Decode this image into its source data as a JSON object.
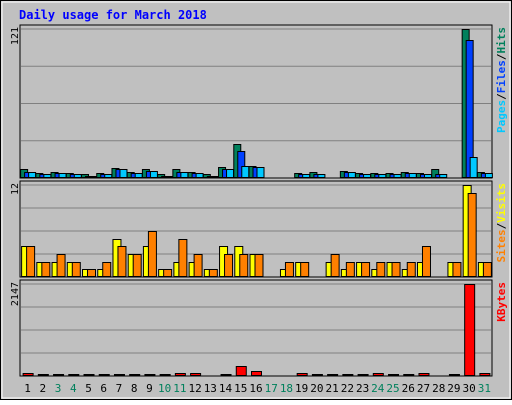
{
  "chart_data": {
    "type": "bar",
    "title": "Daily usage for March 2018",
    "colors": {
      "background": "#c0c0c0",
      "title": "#0000ff",
      "hits": "#00805c",
      "files": "#0040ff",
      "pages": "#00c8ff",
      "visits": "#ffff00",
      "sites": "#ff8000",
      "kbytes": "#ff0000",
      "weekday_label": "#000000",
      "weekend_label": "#00805c"
    },
    "x": {
      "labels": [
        "1",
        "2",
        "3",
        "4",
        "5",
        "6",
        "7",
        "8",
        "9",
        "10",
        "11",
        "12",
        "13",
        "14",
        "15",
        "16",
        "17",
        "18",
        "19",
        "20",
        "21",
        "22",
        "23",
        "24",
        "25",
        "26",
        "27",
        "28",
        "29",
        "30",
        "31"
      ],
      "weekend_days": [
        3,
        4,
        10,
        11,
        17,
        18,
        24,
        25,
        31
      ]
    },
    "panels": [
      {
        "id": "hits-files-pages",
        "ymax": 121,
        "ymax_label": "121",
        "legend": [
          {
            "text": "Hits",
            "color": "#00805c"
          },
          {
            "text": "Files",
            "color": "#0040ff"
          },
          {
            "text": "Pages",
            "color": "#00c8ff"
          }
        ],
        "series": [
          {
            "name": "Hits",
            "color": "#00805c",
            "values": [
              7,
              4,
              5,
              4,
              3,
              4,
              8,
              5,
              7,
              3,
              7,
              5,
              3,
              9,
              28,
              10,
              0,
              0,
              4,
              5,
              0,
              6,
              4,
              4,
              4,
              5,
              4,
              7,
              0,
              121,
              5
            ]
          },
          {
            "name": "Files",
            "color": "#0040ff",
            "values": [
              5,
              3,
              4,
              3,
              2,
              3,
              7,
              4,
              6,
              2,
              5,
              4,
              2,
              7,
              22,
              9,
              0,
              0,
              3,
              3,
              0,
              5,
              3,
              3,
              3,
              4,
              3,
              3,
              0,
              112,
              4
            ]
          },
          {
            "name": "Pages",
            "color": "#00c8ff",
            "values": [
              5,
              3,
              4,
              3,
              2,
              3,
              7,
              4,
              6,
              2,
              5,
              4,
              2,
              7,
              10,
              9,
              0,
              0,
              3,
              3,
              0,
              5,
              3,
              3,
              3,
              4,
              3,
              3,
              0,
              17,
              4
            ]
          }
        ]
      },
      {
        "id": "visits-sites",
        "ymax": 12,
        "ymax_label": "12",
        "legend": [
          {
            "text": "Visits",
            "color": "#ffff00"
          },
          {
            "text": "Sites",
            "color": "#ff8000"
          }
        ],
        "series": [
          {
            "name": "Visits",
            "color": "#ffff00",
            "values": [
              4,
              2,
              2,
              2,
              1,
              1,
              5,
              3,
              4,
              1,
              2,
              2,
              1,
              4,
              4,
              3,
              0,
              1,
              2,
              0,
              2,
              1,
              2,
              1,
              2,
              1,
              2,
              0,
              2,
              12,
              2
            ]
          },
          {
            "name": "Sites",
            "color": "#ff8000",
            "values": [
              4,
              2,
              3,
              2,
              1,
              2,
              4,
              3,
              6,
              1,
              5,
              3,
              1,
              3,
              3,
              3,
              0,
              2,
              2,
              0,
              3,
              2,
              2,
              2,
              2,
              2,
              4,
              0,
              2,
              11,
              2
            ]
          }
        ]
      },
      {
        "id": "kbytes",
        "ymax": 2147,
        "ymax_label": "2147",
        "legend": [
          {
            "text": "KBytes",
            "color": "#ff0000"
          }
        ],
        "series": [
          {
            "name": "KBytes",
            "color": "#ff0000",
            "values": [
              60,
              20,
              30,
              20,
              10,
              30,
              30,
              20,
              40,
              10,
              60,
              80,
              0,
              20,
              240,
              110,
              0,
              0,
              60,
              20,
              20,
              50,
              50,
              60,
              40,
              50,
              70,
              0,
              20,
              2147,
              70
            ]
          }
        ]
      }
    ]
  }
}
